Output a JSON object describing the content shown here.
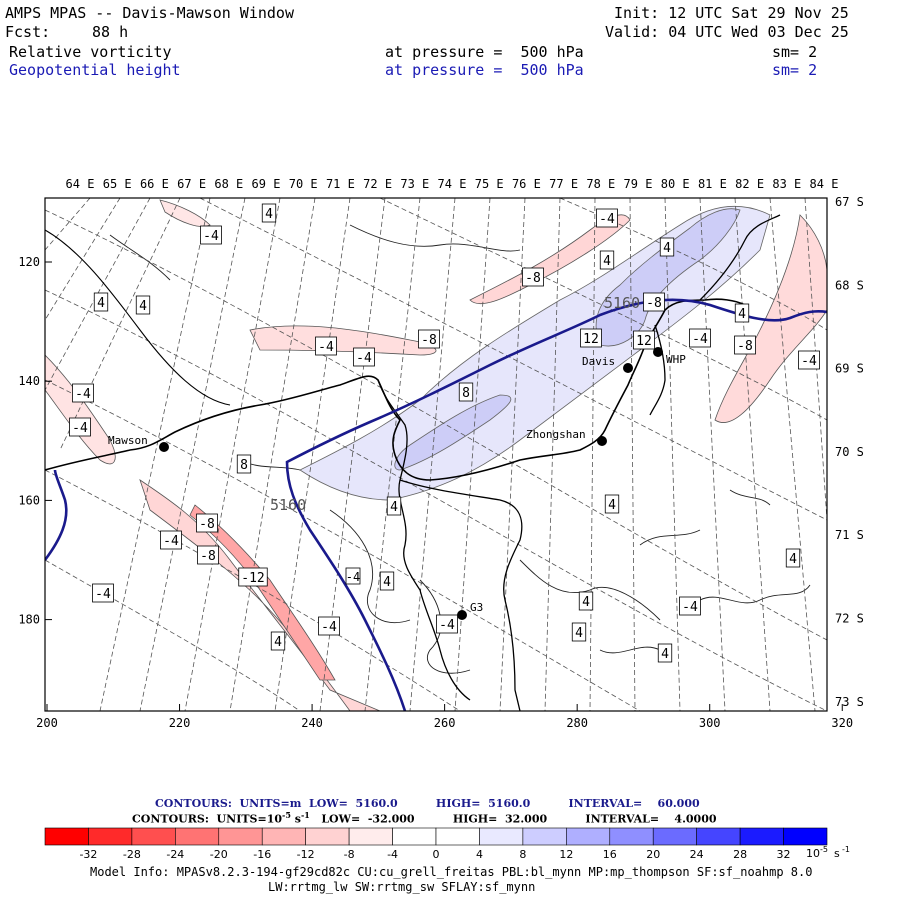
{
  "header": {
    "title": "AMPS MPAS -- Davis-Mawson Window",
    "forecast_label": "Fcst:",
    "forecast_hours": "88 h",
    "init": "Init: 12 UTC Sat 29 Nov 25",
    "valid": "Valid: 04 UTC Wed 03 Dec 25",
    "field1": "Relative vorticity",
    "field2": "Geopotential height",
    "pressure1": "at pressure =  500 hPa",
    "pressure2": "at pressure =  500 hPa",
    "sm1": "sm= 2",
    "sm2": "sm= 2"
  },
  "map": {
    "top_lon_labels": [
      "64 E",
      "65 E",
      "66 E",
      "67 E",
      "68 E",
      "69 E",
      "70 E",
      "71 E",
      "72 E",
      "73 E",
      "74 E",
      "75 E",
      "76 E",
      "77 E",
      "78 E",
      "79 E",
      "80 E",
      "81 E",
      "82 E",
      "83 E",
      "84 E"
    ],
    "right_lat_labels": [
      "67 S",
      "68 S",
      "69 S",
      "70 S",
      "71 S",
      "72 S",
      "73 S"
    ],
    "x_ticks": [
      "200",
      "220",
      "240",
      "260",
      "280",
      "300",
      "320"
    ],
    "y_ticks": [
      "120",
      "140",
      "160",
      "180"
    ],
    "stations": [
      {
        "name": "Mawson"
      },
      {
        "name": "Davis"
      },
      {
        "name": "WHP"
      },
      {
        "name": "Zhongshan"
      },
      {
        "name": "G3"
      }
    ],
    "height_labels": [
      "5160",
      "5160"
    ],
    "vorticity_labels": [
      "4",
      "-4",
      "4",
      "4",
      "-4",
      "-4",
      "-8",
      "-4",
      "-4",
      "-4",
      "-8",
      "4",
      "-8",
      "4",
      "12",
      "8",
      "12",
      "4",
      "-4",
      "-8",
      "-4",
      "8",
      "4",
      "-8",
      "-4",
      "-8",
      "-12",
      "-4",
      "-4",
      "4",
      "-4",
      "4",
      "4",
      "4",
      "4",
      "-4",
      "4",
      "4",
      "-4"
    ]
  },
  "colorbar": {
    "title1": "CONTOURS:  UNITS=m  LOW=  5160.0          HIGH=  5160.0          INTERVAL=    60.000",
    "title2": "CONTOURS:  UNITS=10",
    "title2_exp": "-5",
    "title2_rest": " s",
    "title2_sexp": "-1",
    "title2_tail": "   LOW=  -32.000          HIGH=  32.000          INTERVAL=    4.0000",
    "colors": [
      "#ff0000",
      "#ff2a2a",
      "#ff4f4f",
      "#ff7373",
      "#ff9595",
      "#ffb5b5",
      "#ffd2d2",
      "#ffecec",
      "#ffffff",
      "#ffffff",
      "#e9e9ff",
      "#cdcdff",
      "#afafff",
      "#8f8fff",
      "#6b6bff",
      "#4545ff",
      "#1b1bff",
      "#0000ff"
    ],
    "tick_labels": [
      "-32",
      "-28",
      "-24",
      "-20",
      "-16",
      "-12",
      "-8",
      "-4",
      "0",
      "4",
      "8",
      "12",
      "16",
      "20",
      "24",
      "28",
      "32"
    ],
    "unit": "10",
    "unit_exp": "-5",
    "unit_s": "s",
    "unit_sexp": "-1"
  },
  "footer": {
    "line1": "Model Info: MPASv8.2.3-194-gf29cd82c CU:cu_grell_freitas PBL:bl_mynn MP:mp_thompson SF:sf_noahmp 8.0",
    "line2": "LW:rrtmg_lw SW:rrtmg_sw SFLAY:sf_mynn"
  }
}
